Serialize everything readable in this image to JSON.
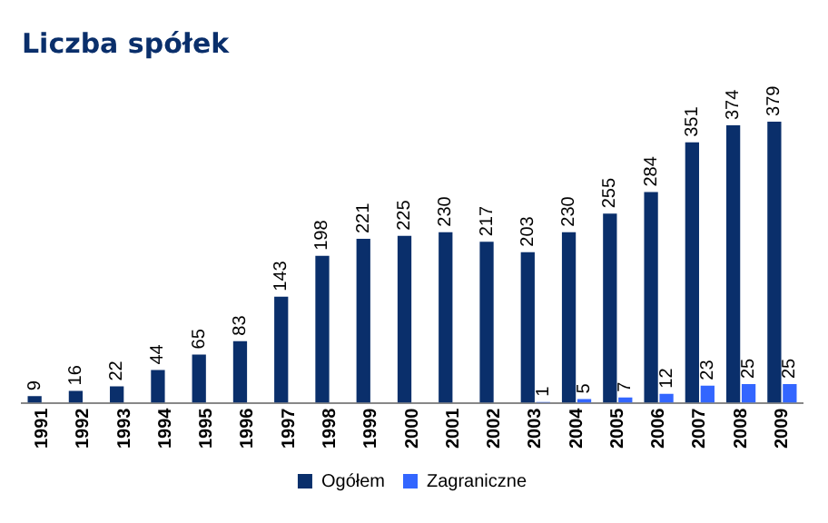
{
  "chart_data": {
    "type": "bar",
    "title": "Liczba spółek",
    "categories": [
      "1991",
      "1992",
      "1993",
      "1994",
      "1995",
      "1996",
      "1997",
      "1998",
      "1999",
      "2000",
      "2001",
      "2002",
      "2003",
      "2004",
      "2005",
      "2006",
      "2007",
      "2008",
      "2009"
    ],
    "series": [
      {
        "name": "Ogółem",
        "color": "#0a2f6b",
        "values": [
          9,
          16,
          22,
          44,
          65,
          83,
          143,
          198,
          221,
          225,
          230,
          217,
          203,
          230,
          255,
          284,
          351,
          374,
          379
        ]
      },
      {
        "name": "Zagraniczne",
        "color": "#3366ff",
        "values": [
          null,
          null,
          null,
          null,
          null,
          null,
          null,
          null,
          null,
          null,
          null,
          null,
          1,
          5,
          7,
          12,
          23,
          25,
          25
        ]
      }
    ],
    "data_labels": true,
    "legend": "bottom",
    "grid": false,
    "tick_labels": "x"
  }
}
